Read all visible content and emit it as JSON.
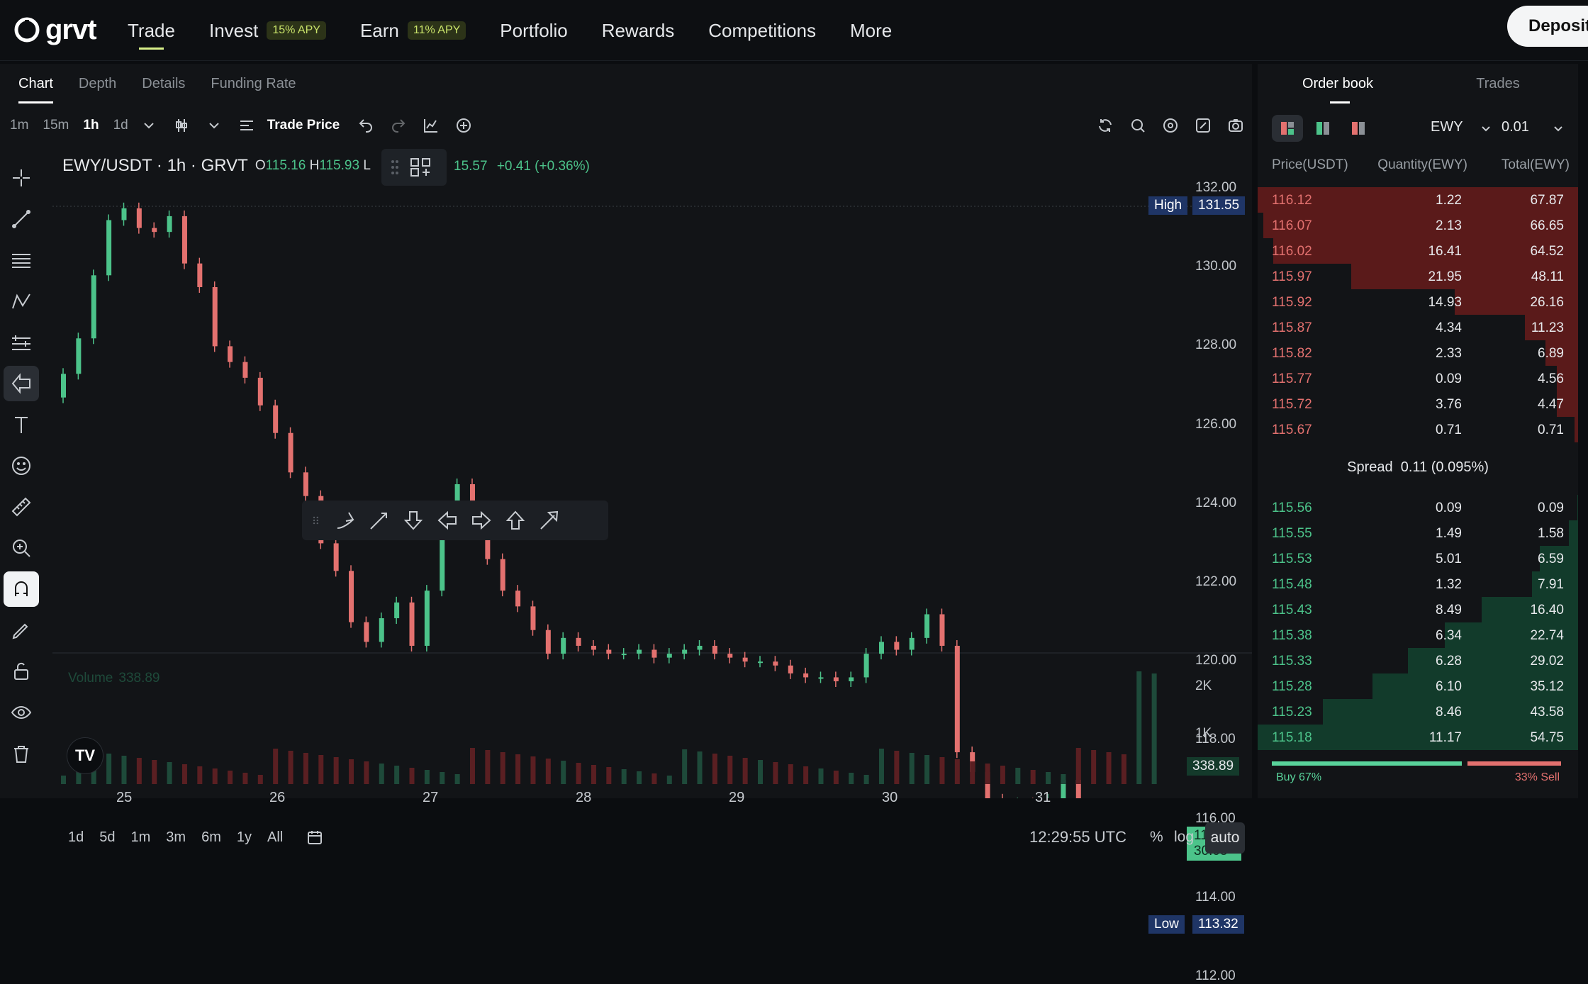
{
  "brand": {
    "name": "grvt"
  },
  "nav": {
    "items": [
      {
        "label": "Trade",
        "badge": ""
      },
      {
        "label": "Invest",
        "badge": "15% APY"
      },
      {
        "label": "Earn",
        "badge": "11% APY"
      },
      {
        "label": "Portfolio",
        "badge": ""
      },
      {
        "label": "Rewards",
        "badge": ""
      },
      {
        "label": "Competitions",
        "badge": ""
      },
      {
        "label": "More",
        "badge": ""
      }
    ],
    "deposit_label": "Deposit"
  },
  "chart_tabs": [
    "Chart",
    "Depth",
    "Details",
    "Funding Rate"
  ],
  "toolbar": {
    "timeframes": [
      "1m",
      "15m",
      "1h",
      "1d"
    ],
    "active_timeframe": "1h",
    "trade_price_label": "Trade Price"
  },
  "legend": {
    "symbol": "EWY/USDT · 1h · GRVT",
    "open_label": "O",
    "open": "115.16",
    "high_label": "H",
    "high": "115.93",
    "low_label": "L",
    "close_tail": "15.57",
    "change": "+0.41 (+0.36%)"
  },
  "price_scale": {
    "ticks": [
      "132.00",
      "130.00",
      "128.00",
      "126.00",
      "124.00",
      "122.00",
      "120.00",
      "118.00",
      "116.00",
      "114.00",
      "112.00"
    ],
    "high_label": "High",
    "high_value": "131.55",
    "low_label": "Low",
    "low_value": "113.32",
    "last_price": "115.57",
    "countdown": "30:05"
  },
  "volume": {
    "label": "Volume",
    "value": "338.89",
    "ticks": [
      "2K",
      "1K"
    ],
    "last": "338.89"
  },
  "time_axis": [
    "25",
    "26",
    "27",
    "28",
    "29",
    "30",
    "31"
  ],
  "bottom_bar": {
    "ranges": [
      "1d",
      "5d",
      "1m",
      "3m",
      "6m",
      "1y",
      "All"
    ],
    "clock": "12:29:55 UTC",
    "percent": "%",
    "log": "log",
    "auto": "auto"
  },
  "orderbook": {
    "tabs": [
      "Order book",
      "Trades"
    ],
    "symbol_select": "EWY",
    "precision_select": "0.01",
    "headers": [
      "Price(USDT)",
      "Quantity(EWY)",
      "Total(EWY)"
    ],
    "asks": [
      {
        "price": "116.12",
        "qty": "1.22",
        "total": "67.87",
        "depth": 1.0
      },
      {
        "price": "116.07",
        "qty": "2.13",
        "total": "66.65",
        "depth": 0.982
      },
      {
        "price": "116.02",
        "qty": "16.41",
        "total": "64.52",
        "depth": 0.951
      },
      {
        "price": "115.97",
        "qty": "21.95",
        "total": "48.11",
        "depth": 0.709
      },
      {
        "price": "115.92",
        "qty": "14.93",
        "total": "26.16",
        "depth": 0.385
      },
      {
        "price": "115.87",
        "qty": "4.34",
        "total": "11.23",
        "depth": 0.165
      },
      {
        "price": "115.82",
        "qty": "2.33",
        "total": "6.89",
        "depth": 0.101
      },
      {
        "price": "115.77",
        "qty": "0.09",
        "total": "4.56",
        "depth": 0.067
      },
      {
        "price": "115.72",
        "qty": "3.76",
        "total": "4.47",
        "depth": 0.066
      },
      {
        "price": "115.67",
        "qty": "0.71",
        "total": "0.71",
        "depth": 0.01
      }
    ],
    "spread_label": "Spread",
    "spread_value": "0.11 (0.095%)",
    "bids": [
      {
        "price": "115.56",
        "qty": "0.09",
        "total": "0.09",
        "depth": 0.002
      },
      {
        "price": "115.55",
        "qty": "1.49",
        "total": "1.58",
        "depth": 0.029
      },
      {
        "price": "115.53",
        "qty": "5.01",
        "total": "6.59",
        "depth": 0.12
      },
      {
        "price": "115.48",
        "qty": "1.32",
        "total": "7.91",
        "depth": 0.144
      },
      {
        "price": "115.43",
        "qty": "8.49",
        "total": "16.40",
        "depth": 0.3
      },
      {
        "price": "115.38",
        "qty": "6.34",
        "total": "22.74",
        "depth": 0.415
      },
      {
        "price": "115.33",
        "qty": "6.28",
        "total": "29.02",
        "depth": 0.53
      },
      {
        "price": "115.28",
        "qty": "6.10",
        "total": "35.12",
        "depth": 0.641
      },
      {
        "price": "115.23",
        "qty": "8.46",
        "total": "43.58",
        "depth": 0.796
      },
      {
        "price": "115.18",
        "qty": "11.17",
        "total": "54.75",
        "depth": 1.0
      }
    ],
    "buy_label": "Buy 67%",
    "buy_fraction": 0.67,
    "sell_label": "33% Sell",
    "sell_fraction": 0.33
  },
  "colors": {
    "up": "#4cc38a",
    "down": "#e3716f",
    "ask_bg": "#5a1a1a",
    "bid_bg": "#123b2b",
    "accent": "#d8f08a"
  }
}
